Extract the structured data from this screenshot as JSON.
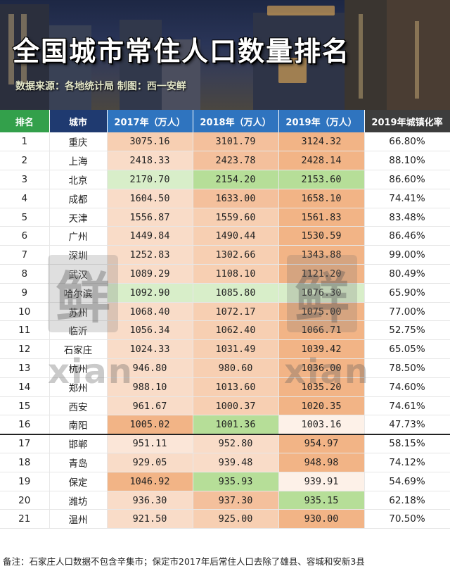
{
  "banner": {
    "title": "全国城市常住人口数量排名",
    "source": "数据来源：各地统计局   制图：西一安鲜"
  },
  "table": {
    "headers": {
      "rank": "排名",
      "city": "城市",
      "y2017": "2017年（万人）",
      "y2018": "2018年（万人）",
      "y2019": "2019年（万人）",
      "urban": "2019年城镇化率"
    },
    "rows": [
      {
        "rank": "1",
        "city": "重庆",
        "y2017": "3075.16",
        "y2018": "3101.79",
        "y2019": "3124.32",
        "urban": "66.80%"
      },
      {
        "rank": "2",
        "city": "上海",
        "y2017": "2418.33",
        "y2018": "2423.78",
        "y2019": "2428.14",
        "urban": "88.10%"
      },
      {
        "rank": "3",
        "city": "北京",
        "y2017": "2170.70",
        "y2018": "2154.20",
        "y2019": "2153.60",
        "urban": "86.60%"
      },
      {
        "rank": "4",
        "city": "成都",
        "y2017": "1604.50",
        "y2018": "1633.00",
        "y2019": "1658.10",
        "urban": "74.41%"
      },
      {
        "rank": "5",
        "city": "天津",
        "y2017": "1556.87",
        "y2018": "1559.60",
        "y2019": "1561.83",
        "urban": "83.48%"
      },
      {
        "rank": "6",
        "city": "广州",
        "y2017": "1449.84",
        "y2018": "1490.44",
        "y2019": "1530.59",
        "urban": "86.46%"
      },
      {
        "rank": "7",
        "city": "深圳",
        "y2017": "1252.83",
        "y2018": "1302.66",
        "y2019": "1343.88",
        "urban": "99.00%"
      },
      {
        "rank": "8",
        "city": "武汉",
        "y2017": "1089.29",
        "y2018": "1108.10",
        "y2019": "1121.20",
        "urban": "80.49%"
      },
      {
        "rank": "9",
        "city": "哈尔滨",
        "y2017": "1092.90",
        "y2018": "1085.80",
        "y2019": "1076.30",
        "urban": "65.90%"
      },
      {
        "rank": "10",
        "city": "苏州",
        "y2017": "1068.40",
        "y2018": "1072.17",
        "y2019": "1075.00",
        "urban": "77.00%"
      },
      {
        "rank": "11",
        "city": "临沂",
        "y2017": "1056.34",
        "y2018": "1062.40",
        "y2019": "1066.71",
        "urban": "52.75%"
      },
      {
        "rank": "12",
        "city": "石家庄",
        "y2017": "1024.33",
        "y2018": "1031.49",
        "y2019": "1039.42",
        "urban": "65.05%"
      },
      {
        "rank": "13",
        "city": "杭州",
        "y2017": "946.80",
        "y2018": "980.60",
        "y2019": "1036.00",
        "urban": "78.50%"
      },
      {
        "rank": "14",
        "city": "郑州",
        "y2017": "988.10",
        "y2018": "1013.60",
        "y2019": "1035.20",
        "urban": "74.60%"
      },
      {
        "rank": "15",
        "city": "西安",
        "y2017": "961.67",
        "y2018": "1000.37",
        "y2019": "1020.35",
        "urban": "74.61%"
      },
      {
        "rank": "16",
        "city": "南阳",
        "y2017": "1005.02",
        "y2018": "1001.36",
        "y2019": "1003.16",
        "urban": "47.73%"
      },
      {
        "rank": "17",
        "city": "邯郸",
        "y2017": "951.11",
        "y2018": "952.80",
        "y2019": "954.97",
        "urban": "58.15%"
      },
      {
        "rank": "18",
        "city": "青岛",
        "y2017": "929.05",
        "y2018": "939.48",
        "y2019": "948.98",
        "urban": "74.12%"
      },
      {
        "rank": "19",
        "city": "保定",
        "y2017": "1046.92",
        "y2018": "935.93",
        "y2019": "939.91",
        "urban": "54.69%"
      },
      {
        "rank": "20",
        "city": "潍坊",
        "y2017": "936.30",
        "y2018": "937.30",
        "y2019": "935.15",
        "urban": "62.18%"
      },
      {
        "rank": "21",
        "city": "温州",
        "y2017": "921.50",
        "y2018": "925.00",
        "y2019": "930.00",
        "urban": "70.50%"
      }
    ]
  },
  "watermark": {
    "glyph": "鲜",
    "latin": "xian"
  },
  "footnote": "备注：石家庄人口数据不包含辛集市；保定市2017年后常住人口去除了雄县、容城和安新3县",
  "colors": {
    "header_rank": "#33a04b",
    "header_city": "#1f3a70",
    "header_years": "#2f74bf",
    "header_urban": "#3d3d3d",
    "heat_low": "#fbe6d8",
    "heat_high": "#f2b486",
    "heat_green": "#b6de98"
  }
}
